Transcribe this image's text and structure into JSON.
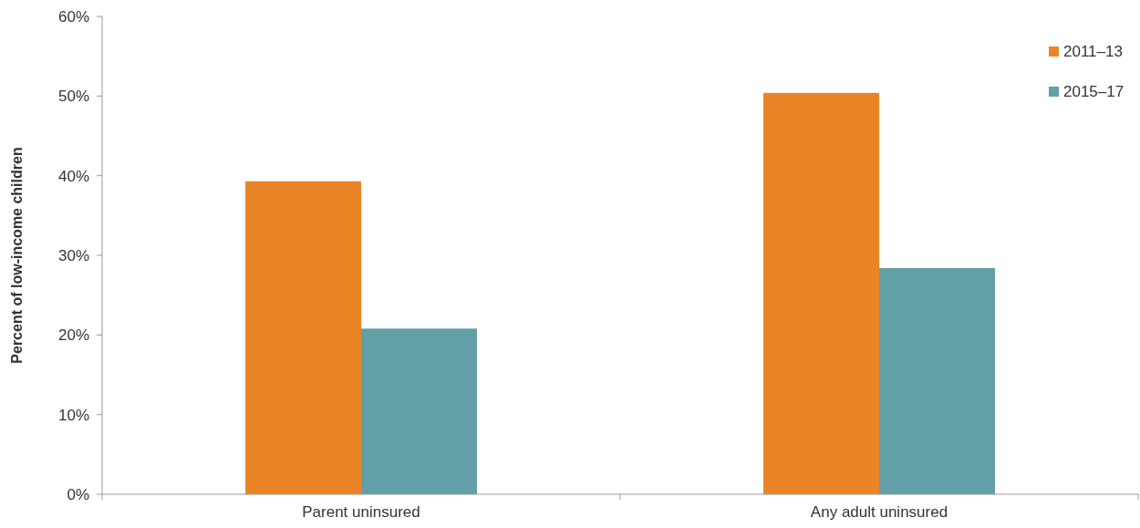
{
  "chart_data": {
    "type": "bar",
    "ylabel": "Percent of low-income children",
    "categories": [
      "Parent uninsured",
      "Any adult uninsured"
    ],
    "series": [
      {
        "name": "2011–13",
        "color": "#e98526",
        "values": [
          39.3,
          50.4
        ]
      },
      {
        "name": "2015–17",
        "color": "#639fa6",
        "values": [
          20.8,
          28.4
        ]
      }
    ],
    "ylim": [
      0,
      60
    ],
    "yticks": [
      {
        "value": 0,
        "label": "0%"
      },
      {
        "value": 10,
        "label": "10%"
      },
      {
        "value": 20,
        "label": "20%"
      },
      {
        "value": 30,
        "label": "30%"
      },
      {
        "value": 40,
        "label": "40%"
      },
      {
        "value": 50,
        "label": "50%"
      },
      {
        "value": 60,
        "label": "60%"
      }
    ],
    "grid": false,
    "legend": "top right"
  }
}
